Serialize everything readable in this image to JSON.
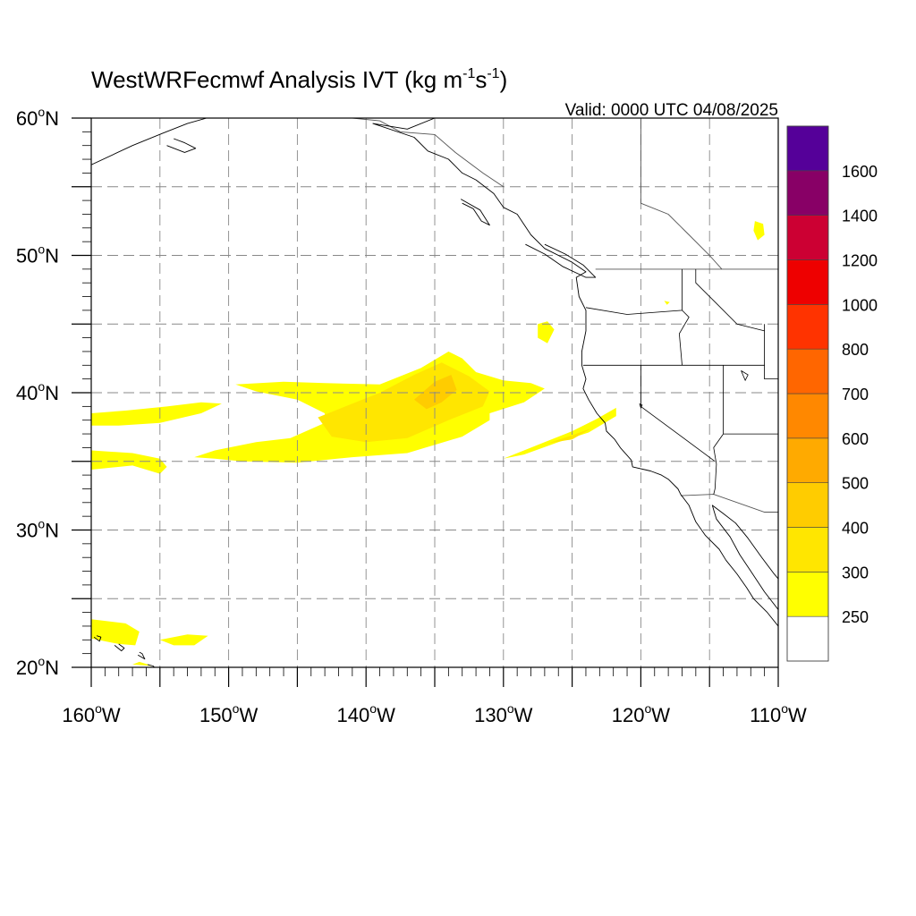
{
  "title": {
    "main": "WestWRFecmwf Analysis IVT (kg m",
    "sup1": "-1",
    "mid": "s",
    "sup2": "-1",
    "close": ")"
  },
  "valid_label": "Valid: 0000 UTC 04/08/2025",
  "map": {
    "lon_range": [
      -160,
      -110
    ],
    "lat_range": [
      20,
      60
    ],
    "lon_ticks": [
      {
        "value": -160,
        "num": "160",
        "deg": "o",
        "hem": "W"
      },
      {
        "value": -150,
        "num": "150",
        "deg": "o",
        "hem": "W"
      },
      {
        "value": -140,
        "num": "140",
        "deg": "o",
        "hem": "W"
      },
      {
        "value": -130,
        "num": "130",
        "deg": "o",
        "hem": "W"
      },
      {
        "value": -120,
        "num": "120",
        "deg": "o",
        "hem": "W"
      },
      {
        "value": -110,
        "num": "110",
        "deg": "o",
        "hem": "W"
      }
    ],
    "lat_ticks": [
      {
        "value": 20,
        "num": "20",
        "deg": "o",
        "hem": "N"
      },
      {
        "value": 30,
        "num": "30",
        "deg": "o",
        "hem": "N"
      },
      {
        "value": 40,
        "num": "40",
        "deg": "o",
        "hem": "N"
      },
      {
        "value": 50,
        "num": "50",
        "deg": "o",
        "hem": "N"
      },
      {
        "value": 60,
        "num": "60",
        "deg": "o",
        "hem": "N"
      }
    ],
    "grid_spacing_deg": 5,
    "grid_lines": "dashed",
    "coast_color": "#000000",
    "border_color": "#555555"
  },
  "colorbar": {
    "placement": "right",
    "levels": [
      {
        "label": "",
        "color": "#ffffff"
      },
      {
        "label": "250",
        "color": "#ffff00"
      },
      {
        "label": "300",
        "color": "#ffe600"
      },
      {
        "label": "400",
        "color": "#ffcc00"
      },
      {
        "label": "500",
        "color": "#ffaa00"
      },
      {
        "label": "600",
        "color": "#ff8800"
      },
      {
        "label": "700",
        "color": "#ff6600"
      },
      {
        "label": "800",
        "color": "#ff3300"
      },
      {
        "label": "1000",
        "color": "#ee0000"
      },
      {
        "label": "1200",
        "color": "#cc0033"
      },
      {
        "label": "1400",
        "color": "#880066"
      },
      {
        "label": "1600",
        "color": "#550099"
      }
    ]
  },
  "ivt_regions": [
    {
      "name": "main-river",
      "color": "#ffff00",
      "coords": [
        [
          -139,
          40.6
        ],
        [
          -136,
          41.8
        ],
        [
          -134,
          43
        ],
        [
          -133,
          42.5
        ],
        [
          -132,
          41.5
        ],
        [
          -130,
          40.9
        ],
        [
          -128,
          40.7
        ],
        [
          -127,
          40.3
        ],
        [
          -128.5,
          39.3
        ],
        [
          -131,
          38.5
        ],
        [
          -131,
          38
        ],
        [
          -133,
          36.8
        ],
        [
          -137,
          35.6
        ],
        [
          -141,
          35.3
        ],
        [
          -145,
          34.9
        ],
        [
          -149,
          35
        ],
        [
          -151,
          35.2
        ],
        [
          -152.5,
          35.3
        ],
        [
          -151,
          35.8
        ],
        [
          -148,
          36.4
        ],
        [
          -145.5,
          36.7
        ],
        [
          -143,
          37.8
        ],
        [
          -143,
          38.5
        ],
        [
          -145,
          39.5
        ],
        [
          -148,
          40.1
        ],
        [
          -149.5,
          40.6
        ],
        [
          -146,
          40.8
        ],
        [
          -143,
          40.7
        ]
      ]
    },
    {
      "name": "main-river-core",
      "color": "#ffe600",
      "coords": [
        [
          -139,
          40
        ],
        [
          -136.5,
          41.3
        ],
        [
          -134.5,
          42.2
        ],
        [
          -132.5,
          41.2
        ],
        [
          -131,
          40.1
        ],
        [
          -131.5,
          39
        ],
        [
          -134,
          38
        ],
        [
          -137,
          36.7
        ],
        [
          -140,
          36.4
        ],
        [
          -142.5,
          36.8
        ],
        [
          -143.5,
          38.2
        ],
        [
          -141,
          39.2
        ]
      ]
    },
    {
      "name": "main-river-peak",
      "color": "#ffcc00",
      "coords": [
        [
          -136.5,
          39.5
        ],
        [
          -135,
          40.8
        ],
        [
          -133.8,
          41.3
        ],
        [
          -133.4,
          40.2
        ],
        [
          -134.5,
          39.3
        ],
        [
          -135.6,
          38.8
        ]
      ]
    },
    {
      "name": "eastern-filament",
      "color": "#ffff00",
      "coords": [
        [
          -130,
          35.2
        ],
        [
          -127,
          36.4
        ],
        [
          -125,
          37.2
        ],
        [
          -123.2,
          38.1
        ],
        [
          -121.8,
          38.9
        ],
        [
          -121.8,
          38.3
        ],
        [
          -123.8,
          37.1
        ],
        [
          -126,
          36.4
        ],
        [
          -128.5,
          35.5
        ]
      ]
    },
    {
      "name": "eastern-filament-core",
      "color": "#ffe600",
      "coords": [
        [
          -126.8,
          36.3
        ],
        [
          -125,
          36.9
        ],
        [
          -123.6,
          37.4
        ],
        [
          -125,
          36.6
        ]
      ]
    },
    {
      "name": "western-band-north",
      "color": "#ffff00",
      "coords": [
        [
          -160,
          38.5
        ],
        [
          -157.5,
          38.7
        ],
        [
          -154.5,
          39
        ],
        [
          -152,
          39.3
        ],
        [
          -150.5,
          39.2
        ],
        [
          -152,
          38.5
        ],
        [
          -155,
          37.8
        ],
        [
          -158,
          37.6
        ],
        [
          -160,
          37.6
        ]
      ]
    },
    {
      "name": "western-band-south",
      "color": "#ffff00",
      "coords": [
        [
          -160,
          35.8
        ],
        [
          -157,
          35.6
        ],
        [
          -155,
          35.2
        ],
        [
          -154.5,
          34.6
        ],
        [
          -155,
          34.1
        ],
        [
          -157,
          34.7
        ],
        [
          -160,
          34.4
        ]
      ]
    },
    {
      "name": "hawaii-band",
      "color": "#ffff00",
      "coords": [
        [
          -160,
          23.5
        ],
        [
          -157.5,
          23.2
        ],
        [
          -156.5,
          22.6
        ],
        [
          -156.8,
          21.6
        ],
        [
          -158,
          21.7
        ],
        [
          -160,
          22.1
        ]
      ]
    },
    {
      "name": "hawaii-east",
      "color": "#ffff00",
      "coords": [
        [
          -155,
          22
        ],
        [
          -153,
          22.4
        ],
        [
          -151.5,
          22.3
        ],
        [
          -152.5,
          21.6
        ],
        [
          -154,
          21.6
        ]
      ]
    },
    {
      "name": "hawaii-south",
      "color": "#ffff00",
      "coords": [
        [
          -157,
          20.2
        ],
        [
          -156.5,
          20.4
        ],
        [
          -155.5,
          20.1
        ]
      ]
    },
    {
      "name": "oregon-blob",
      "color": "#ffff00",
      "coords": [
        [
          -127.5,
          45
        ],
        [
          -126.8,
          45.2
        ],
        [
          -126.3,
          44.6
        ],
        [
          -126.8,
          43.6
        ],
        [
          -127.5,
          44
        ]
      ]
    },
    {
      "name": "rockies-blob",
      "color": "#ffff00",
      "coords": [
        [
          -111.7,
          52.5
        ],
        [
          -111.1,
          52.3
        ],
        [
          -111,
          51.5
        ],
        [
          -111.5,
          51.1
        ],
        [
          -111.8,
          51.8
        ]
      ]
    },
    {
      "name": "tiny-blob",
      "color": "#ffff00",
      "coords": [
        [
          -118.3,
          46.7
        ],
        [
          -117.9,
          46.6
        ],
        [
          -118.1,
          46.4
        ]
      ]
    }
  ],
  "coastlines": [
    {
      "name": "north-america-west-coast",
      "coords": [
        [
          -108.5,
          60
        ],
        [
          -135,
          60
        ],
        [
          -137,
          59.2
        ],
        [
          -139.5,
          59.6
        ],
        [
          -136.5,
          58.6
        ],
        [
          -135.5,
          57.6
        ],
        [
          -134,
          57
        ],
        [
          -133,
          56
        ],
        [
          -132,
          55.5
        ],
        [
          -130.7,
          54.5
        ],
        [
          -130,
          53.5
        ],
        [
          -129,
          53
        ],
        [
          -128,
          51.5
        ],
        [
          -127,
          50.5
        ],
        [
          -125,
          49.5
        ],
        [
          -124,
          48.8
        ],
        [
          -124.7,
          48.4
        ],
        [
          -124.5,
          47
        ],
        [
          -124,
          46
        ],
        [
          -124,
          44.5
        ],
        [
          -124.3,
          43
        ],
        [
          -124.3,
          42
        ],
        [
          -124,
          41
        ],
        [
          -124.2,
          40.3
        ],
        [
          -123.8,
          39.5
        ],
        [
          -123.2,
          38.5
        ],
        [
          -122.6,
          37.8
        ],
        [
          -122.5,
          37.2
        ],
        [
          -121.9,
          36.6
        ],
        [
          -121.5,
          36
        ],
        [
          -120.7,
          35.1
        ],
        [
          -120.6,
          34.6
        ],
        [
          -119.3,
          34.3
        ],
        [
          -118.5,
          34
        ],
        [
          -118,
          33.7
        ],
        [
          -117.3,
          33
        ],
        [
          -117.1,
          32.6
        ],
        [
          -116.5,
          31.8
        ],
        [
          -116,
          30.6
        ],
        [
          -115.3,
          29.6
        ],
        [
          -114.3,
          28.6
        ],
        [
          -113.8,
          27.8
        ],
        [
          -113,
          26.8
        ],
        [
          -112.3,
          25.8
        ],
        [
          -111.8,
          25
        ],
        [
          -110.8,
          24
        ],
        [
          -110,
          23
        ],
        [
          -109.6,
          22.9
        ]
      ]
    },
    {
      "name": "gulf-of-california",
      "coords": [
        [
          -109.6,
          22.9
        ],
        [
          -110,
          24.2
        ],
        [
          -111,
          25.5
        ],
        [
          -112,
          27
        ],
        [
          -112.8,
          28.2
        ],
        [
          -113.5,
          29.5
        ],
        [
          -114.5,
          30.8
        ],
        [
          -114.8,
          31.8
        ],
        [
          -114,
          31.2
        ],
        [
          -113.1,
          30.5
        ],
        [
          -112.2,
          29.4
        ],
        [
          -111.2,
          28
        ],
        [
          -110.3,
          26.8
        ],
        [
          -109.2,
          25.5
        ],
        [
          -108,
          24
        ],
        [
          -107,
          23
        ],
        [
          -106,
          22
        ]
      ]
    },
    {
      "name": "vancouver-island",
      "coords": [
        [
          -128.4,
          50.8
        ],
        [
          -127,
          50.1
        ],
        [
          -125.7,
          49.2
        ],
        [
          -124,
          48.4
        ],
        [
          -123.3,
          48.4
        ],
        [
          -124.2,
          49.3
        ],
        [
          -125.5,
          50.1
        ],
        [
          -127,
          50.8
        ]
      ]
    },
    {
      "name": "haida-gwaii",
      "coords": [
        [
          -133.1,
          54.1
        ],
        [
          -131.7,
          53.3
        ],
        [
          -131,
          52.2
        ],
        [
          -131.6,
          52.5
        ],
        [
          -132.2,
          53.4
        ],
        [
          -133,
          53.8
        ]
      ]
    },
    {
      "name": "alaska-west-coast",
      "coords": [
        [
          -160,
          56.6
        ],
        [
          -157,
          58
        ],
        [
          -154.8,
          58.9
        ],
        [
          -153,
          59.6
        ],
        [
          -151.6,
          60
        ]
      ]
    },
    {
      "name": "kodiak-island",
      "coords": [
        [
          -154.5,
          58
        ],
        [
          -153.2,
          57.5
        ],
        [
          -152.4,
          57.8
        ],
        [
          -153.2,
          58.2
        ],
        [
          -154,
          58.5
        ]
      ]
    },
    {
      "name": "oahu",
      "coords": [
        [
          -158.3,
          21.6
        ],
        [
          -157.8,
          21.2
        ],
        [
          -157.6,
          21.4
        ],
        [
          -158,
          21.7
        ]
      ]
    },
    {
      "name": "maui",
      "coords": [
        [
          -156.6,
          20.9
        ],
        [
          -156.1,
          20.6
        ],
        [
          -156.3,
          21
        ],
        [
          -156.5,
          21.1
        ]
      ]
    },
    {
      "name": "big-island",
      "coords": [
        [
          -155.9,
          20.2
        ],
        [
          -155.5,
          20.1
        ],
        [
          -155.1,
          19.7
        ],
        [
          -155.7,
          19.9
        ]
      ]
    },
    {
      "name": "kauai",
      "coords": [
        [
          -159.8,
          22.2
        ],
        [
          -159.4,
          21.9
        ],
        [
          -159.3,
          22.2
        ],
        [
          -159.6,
          22.3
        ]
      ]
    }
  ],
  "borders": [
    {
      "name": "ak-bc-border",
      "coords": [
        [
          -141,
          60
        ],
        [
          -139,
          59.8
        ],
        [
          -137.5,
          59
        ],
        [
          -135,
          58.8
        ],
        [
          -133.5,
          57.5
        ],
        [
          -131.5,
          56
        ],
        [
          -130,
          55
        ]
      ]
    },
    {
      "name": "canada-us-border",
      "coords": [
        [
          -123.3,
          49
        ],
        [
          -108.5,
          49
        ]
      ]
    },
    {
      "name": "us-mexico-border",
      "coords": [
        [
          -117.1,
          32.5
        ],
        [
          -114.7,
          32.6
        ],
        [
          -111,
          31.3
        ],
        [
          -108.5,
          31.3
        ]
      ]
    },
    {
      "name": "bc-alberta-border",
      "coords": [
        [
          -120,
          60
        ],
        [
          -120,
          53.8
        ],
        [
          -118,
          53
        ],
        [
          -116.5,
          51.5
        ],
        [
          -115,
          50
        ],
        [
          -114.1,
          49
        ]
      ]
    }
  ],
  "states": [
    {
      "name": "washington-oregon",
      "coords": [
        [
          -124,
          46.2
        ],
        [
          -121,
          45.7
        ],
        [
          -117,
          46
        ],
        [
          -117,
          49
        ]
      ]
    },
    {
      "name": "oregon-idaho",
      "coords": [
        [
          -117,
          46
        ],
        [
          -116.5,
          45.5
        ],
        [
          -117.2,
          44.3
        ],
        [
          -117,
          42
        ]
      ]
    },
    {
      "name": "oregon-california",
      "coords": [
        [
          -124.2,
          42
        ],
        [
          -117,
          42
        ],
        [
          -111,
          42
        ]
      ]
    },
    {
      "name": "california-nevada",
      "coords": [
        [
          -120,
          42
        ],
        [
          -120,
          39
        ],
        [
          -114.6,
          35
        ]
      ]
    },
    {
      "name": "nevada-utah",
      "coords": [
        [
          -114,
          42
        ],
        [
          -114,
          37
        ]
      ]
    },
    {
      "name": "arizona-north",
      "coords": [
        [
          -114,
          37
        ],
        [
          -108.5,
          37
        ]
      ]
    },
    {
      "name": "arizona-west",
      "coords": [
        [
          -114,
          37
        ],
        [
          -114.7,
          36
        ],
        [
          -114.5,
          34.8
        ],
        [
          -114.6,
          33
        ],
        [
          -114.7,
          32.6
        ]
      ]
    },
    {
      "name": "idaho-montana",
      "coords": [
        [
          -116,
          49
        ],
        [
          -116,
          48
        ],
        [
          -114.5,
          46.5
        ],
        [
          -113,
          45
        ],
        [
          -111,
          44.5
        ]
      ]
    },
    {
      "name": "wyoming-west",
      "coords": [
        [
          -111,
          45
        ],
        [
          -111,
          41
        ],
        [
          -108.5,
          41
        ]
      ]
    },
    {
      "name": "lake-tahoe",
      "coords": [
        [
          -120.1,
          39.2
        ],
        [
          -119.9,
          39.1
        ],
        [
          -120,
          38.9
        ],
        [
          -120.1,
          39.2
        ]
      ]
    },
    {
      "name": "great-salt-lake",
      "coords": [
        [
          -112.7,
          41.6
        ],
        [
          -112.2,
          41.3
        ],
        [
          -112.4,
          40.9
        ],
        [
          -112.7,
          41.6
        ]
      ]
    }
  ]
}
